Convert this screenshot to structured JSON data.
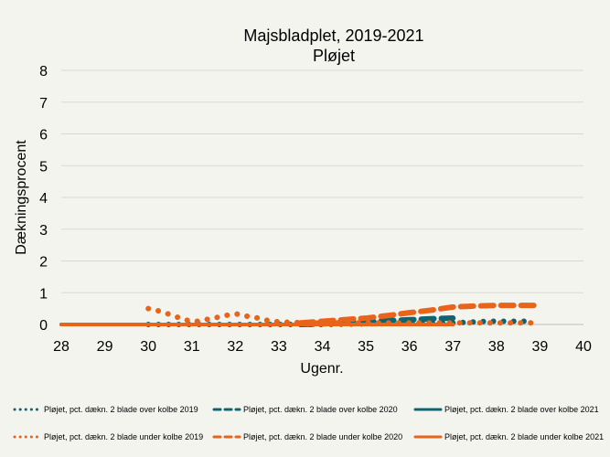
{
  "chart_data": {
    "type": "line",
    "title": "Majsbladplet, 2019-2021",
    "subtitle": "Pløjet",
    "xlabel": "Ugenr.",
    "ylabel": "Dækningsprocent",
    "xlim": [
      28,
      40
    ],
    "ylim": [
      0,
      8
    ],
    "xticks": [
      "28",
      "29",
      "30",
      "31",
      "32",
      "33",
      "34",
      "35",
      "36",
      "37",
      "38",
      "39",
      "40"
    ],
    "yticks": [
      "0",
      "1",
      "2",
      "3",
      "4",
      "5",
      "6",
      "7",
      "8"
    ],
    "grid": "horizontal",
    "legend_position": "bottom",
    "series": [
      {
        "name": "Pløjet, pct. dækn. 2 blade over kolbe 2019",
        "color": "#0e6470",
        "style": "dotted",
        "x": [
          30,
          31,
          32,
          33,
          34,
          35,
          36,
          37,
          37.5,
          37.8,
          38.1,
          38.4,
          38.8
        ],
        "y": [
          0,
          0,
          0,
          0,
          0,
          0.02,
          0.03,
          0.05,
          0.08,
          0.1,
          0.1,
          0.1,
          0.1
        ]
      },
      {
        "name": "Pløjet, pct. dækn. 2 blade over kolbe 2020",
        "color": "#0e6470",
        "style": "dashed",
        "x": [
          33.5,
          34,
          34.5,
          35,
          35.5,
          36,
          36.5,
          37
        ],
        "y": [
          0,
          0.02,
          0.05,
          0.08,
          0.12,
          0.15,
          0.18,
          0.2
        ]
      },
      {
        "name": "Pløjet, pct. dækn. 2 blade over kolbe 2021",
        "color": "#0e6470",
        "style": "solid",
        "x": [
          28,
          37
        ],
        "y": [
          0,
          0
        ]
      },
      {
        "name": "Pløjet, pct. dækn. 2 blade under kolbe 2019",
        "color": "#e8641b",
        "style": "dotted",
        "x": [
          30,
          30.23,
          30.46,
          30.69,
          30.92,
          31.15,
          31.38,
          31.61,
          31.84,
          32.07,
          32.3,
          32.53,
          32.76,
          32.99,
          33.22,
          33.45,
          33.7,
          34,
          34.5,
          35,
          35.5,
          36,
          36.5,
          37,
          37.5,
          38,
          38.5,
          38.9
        ],
        "y": [
          0.5,
          0.43,
          0.33,
          0.22,
          0.12,
          0.1,
          0.17,
          0.23,
          0.3,
          0.33,
          0.25,
          0.2,
          0.12,
          0.08,
          0.07,
          0.06,
          0.05,
          0.05,
          0.05,
          0.05,
          0.05,
          0.05,
          0.05,
          0.05,
          0.05,
          0.05,
          0.05,
          0.05
        ]
      },
      {
        "name": "Pløjet, pct. dækn. 2 blade under kolbe 2020",
        "color": "#e8641b",
        "style": "dashed",
        "x": [
          33.5,
          34,
          34.5,
          35,
          35.5,
          36,
          36.5,
          37,
          37.5,
          38,
          38.5,
          39
        ],
        "y": [
          0.05,
          0.1,
          0.15,
          0.2,
          0.28,
          0.37,
          0.45,
          0.55,
          0.58,
          0.6,
          0.6,
          0.6
        ]
      },
      {
        "name": "Pløjet, pct. dækn. 2 blade under kolbe 2021",
        "color": "#e8641b",
        "style": "solid",
        "x": [
          28,
          29,
          30,
          31,
          32,
          33,
          34,
          35,
          36,
          37
        ],
        "y": [
          0,
          0,
          0,
          0,
          0,
          0,
          0,
          0,
          0,
          0
        ]
      }
    ]
  }
}
